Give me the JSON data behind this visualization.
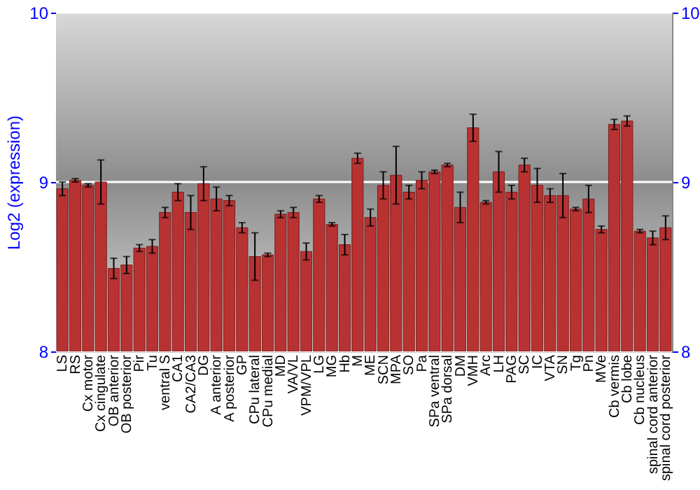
{
  "chart_data": {
    "type": "bar",
    "ylabel": "Log2 (expression)",
    "categories": [
      "LS",
      "RS",
      "Cx motor",
      "Cx cingulate",
      "OB anterior",
      "OB posterior",
      "Pir",
      "Tu",
      "ventral S",
      "CA1",
      "CA2/CA3",
      "DG",
      "A anterior",
      "A posterior",
      "GP",
      "CPu lateral",
      "CPu medial",
      "MD",
      "VA/VL",
      "VPM/VPL",
      "LG",
      "MG",
      "Hb",
      "M",
      "ME",
      "SCN",
      "MPA",
      "SO",
      "Pa",
      "SPa ventral",
      "SPa dorsal",
      "DM",
      "VMH",
      "Arc",
      "LH",
      "PAG",
      "SC",
      "IC",
      "VTA",
      "SN",
      "Tg",
      "Pn",
      "MVe",
      "Cb vermis",
      "Cb lobe",
      "Cb nucleus",
      "spinal cord anterior",
      "spinal cord posterior"
    ],
    "values": [
      8.96,
      9.01,
      8.98,
      9.0,
      8.49,
      8.51,
      8.61,
      8.62,
      8.82,
      8.94,
      8.82,
      8.99,
      8.9,
      8.89,
      8.73,
      8.56,
      8.57,
      8.81,
      8.82,
      8.59,
      8.9,
      8.75,
      8.63,
      9.14,
      8.79,
      8.98,
      9.04,
      8.94,
      9.01,
      9.06,
      9.1,
      8.85,
      9.32,
      8.88,
      9.06,
      8.94,
      9.1,
      8.98,
      8.92,
      8.92,
      8.84,
      8.9,
      8.72,
      9.34,
      9.36,
      8.71,
      8.67,
      8.73
    ],
    "errors": [
      0.04,
      0.01,
      0.01,
      0.13,
      0.06,
      0.05,
      0.02,
      0.04,
      0.03,
      0.05,
      0.1,
      0.1,
      0.07,
      0.03,
      0.03,
      0.14,
      0.01,
      0.02,
      0.03,
      0.05,
      0.02,
      0.01,
      0.06,
      0.03,
      0.05,
      0.08,
      0.17,
      0.04,
      0.05,
      0.01,
      0.01,
      0.09,
      0.08,
      0.01,
      0.12,
      0.04,
      0.04,
      0.1,
      0.04,
      0.13,
      0.01,
      0.08,
      0.02,
      0.03,
      0.03,
      0.01,
      0.04,
      0.07
    ],
    "color": "#b83232",
    "ylim": [
      8,
      10
    ],
    "yticks": [
      8,
      9,
      10
    ],
    "y2lim": [
      8,
      10
    ],
    "y2ticks": [
      8,
      9,
      10
    ],
    "grid": "y"
  }
}
